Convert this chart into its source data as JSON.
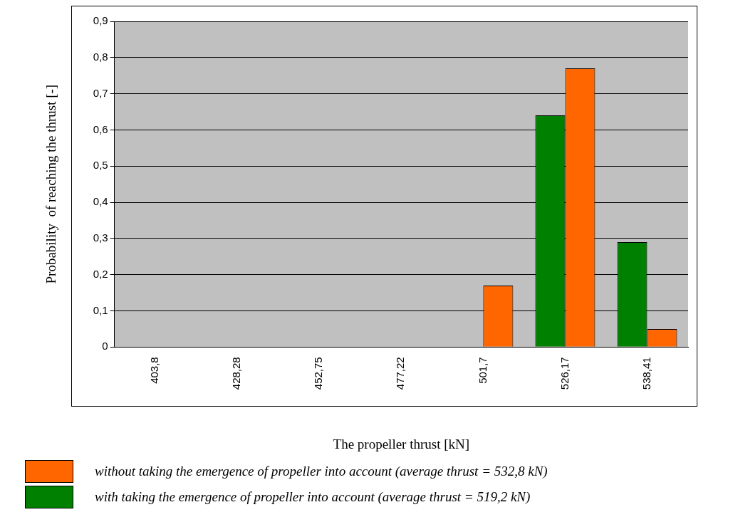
{
  "chart_data": {
    "type": "bar",
    "xlabel": "The propeller thrust [kN]",
    "ylabel": "Probability  of reaching the thrust [-]",
    "categories": [
      "403,8",
      "428,28",
      "452,75",
      "477,22",
      "501,7",
      "526,17",
      "538,41"
    ],
    "series": [
      {
        "name": "with taking the emergence of propeller into account (average thrust = 519,2 kN)",
        "color": "#008000",
        "values": [
          0,
          0,
          0,
          0,
          0,
          0.64,
          0.29
        ]
      },
      {
        "name": "without taking the emergence of propeller into account (average thrust = 532,8 kN)",
        "color": "#ff6600",
        "values": [
          0,
          0,
          0,
          0,
          0.17,
          0.77,
          0.05
        ]
      }
    ],
    "ylim": [
      0,
      0.9
    ],
    "yticks": [
      {
        "value": 0,
        "label": "0"
      },
      {
        "value": 0.1,
        "label": "0,1"
      },
      {
        "value": 0.2,
        "label": "0,2"
      },
      {
        "value": 0.3,
        "label": "0,3"
      },
      {
        "value": 0.4,
        "label": "0,4"
      },
      {
        "value": 0.5,
        "label": "0,5"
      },
      {
        "value": 0.6,
        "label": "0,6"
      },
      {
        "value": 0.7,
        "label": "0,7"
      },
      {
        "value": 0.8,
        "label": "0,8"
      },
      {
        "value": 0.9,
        "label": "0,9"
      }
    ],
    "grid": "y",
    "legend": "bottom"
  }
}
